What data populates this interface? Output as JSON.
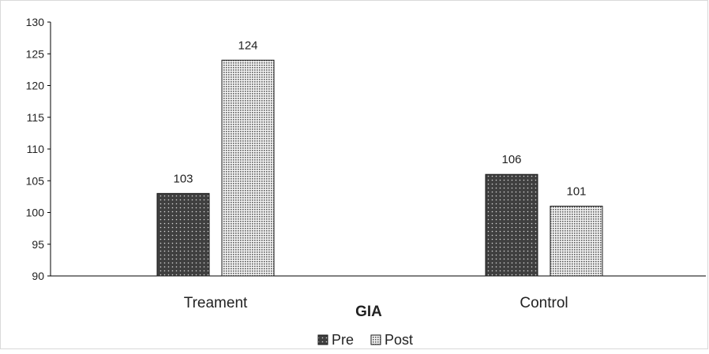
{
  "chart_data": {
    "type": "bar",
    "categories": [
      "Treament",
      "Control"
    ],
    "series": [
      {
        "name": "Pre",
        "values": [
          103,
          106
        ]
      },
      {
        "name": "Post",
        "values": [
          124,
          101
        ]
      }
    ],
    "xlabel": "GIA",
    "ylabel": "",
    "ylim": [
      90,
      130
    ],
    "yticks": [
      90,
      95,
      100,
      105,
      110,
      115,
      120,
      125,
      130
    ],
    "grid": false,
    "legend": "bottom-center",
    "colors": {
      "pre": "#3f3f3f",
      "post": "#8c8c8c",
      "axis": "#000000"
    }
  }
}
